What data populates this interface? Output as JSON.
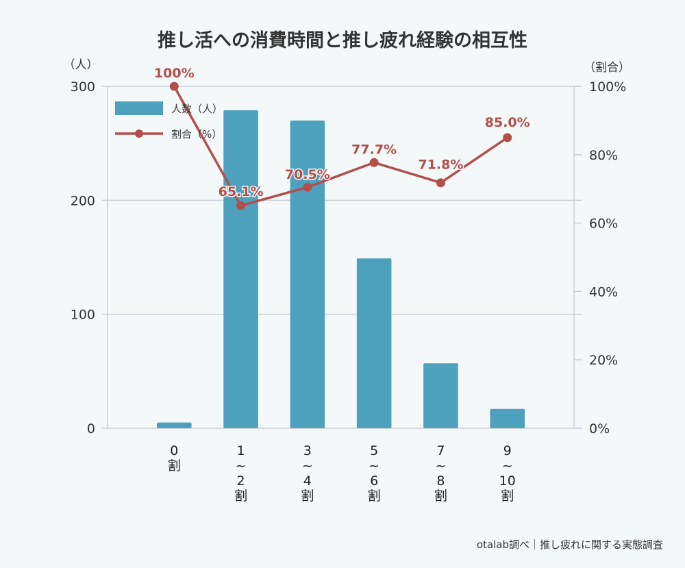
{
  "chart_data": {
    "type": "bar",
    "title": "推し活への消費時間と推し疲れ経験の相互性",
    "categories": [
      "0割",
      "1~2割",
      "3~4割",
      "5~6割",
      "7~8割",
      "9~10割"
    ],
    "category_labels": [
      [
        "0",
        "割"
      ],
      [
        "1",
        "~",
        "2",
        "割"
      ],
      [
        "3",
        "~",
        "4",
        "割"
      ],
      [
        "5",
        "~",
        "6",
        "割"
      ],
      [
        "7",
        "~",
        "8",
        "割"
      ],
      [
        "9",
        "~",
        "10",
        "割"
      ]
    ],
    "series": [
      {
        "name": "人数（人）",
        "type": "bar",
        "axis": "left",
        "color": "#4ea1bd",
        "values": [
          5,
          279,
          270,
          149,
          57,
          17
        ]
      },
      {
        "name": "割合（%）",
        "type": "line",
        "axis": "right",
        "color": "#b34e4b",
        "values": [
          100,
          65.1,
          70.5,
          77.7,
          71.8,
          85.0
        ],
        "labels": [
          "100%",
          "65.1%",
          "70.5%",
          "77.7%",
          "71.8%",
          "85.0%"
        ]
      }
    ],
    "y_left": {
      "label": "（人）",
      "ylim": [
        0,
        300
      ],
      "ticks": [
        0,
        100,
        200,
        300
      ],
      "tick_labels": [
        "0",
        "100",
        "200",
        "300"
      ]
    },
    "y_right": {
      "label": "（割合）",
      "ylim": [
        0,
        100
      ],
      "ticks": [
        0,
        20,
        40,
        60,
        80,
        100
      ],
      "tick_labels": [
        "0%",
        "20%",
        "40%",
        "60%",
        "80%",
        "100%"
      ]
    },
    "legend_position": "top-left",
    "grid": true,
    "source": "otalab調べ｜推し疲れに関する実態調査"
  }
}
